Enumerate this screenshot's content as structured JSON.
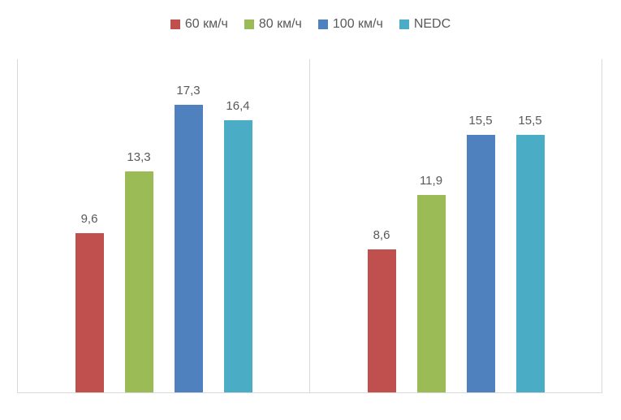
{
  "chart_data": {
    "type": "bar",
    "title": "",
    "xlabel": "",
    "ylabel": "",
    "categories": [
      "",
      ""
    ],
    "series": [
      {
        "name": "60 км/ч",
        "color": "#c0504d",
        "values": [
          9.6,
          8.6
        ],
        "labels": [
          "9,6",
          "8,6"
        ]
      },
      {
        "name": "80 км/ч",
        "color": "#9abb55",
        "values": [
          13.3,
          11.9
        ],
        "labels": [
          "13,3",
          "11,9"
        ]
      },
      {
        "name": "100 км/ч",
        "color": "#4e81bd",
        "values": [
          17.3,
          15.5
        ],
        "labels": [
          "17,3",
          "15,5"
        ]
      },
      {
        "name": "NEDC",
        "color": "#4bacc6",
        "values": [
          16.4,
          15.5
        ],
        "labels": [
          "16,4",
          "15,5"
        ]
      }
    ],
    "ylim": [
      0,
      20
    ],
    "axis_ticks_visible": false,
    "category_labels_visible": false,
    "grid": "vertical-category-separators",
    "gridline_color": "#d9d9d9",
    "data_labels": "above-bars, comma decimal separator",
    "label_color": "#595959",
    "legend_position": "top-center"
  }
}
